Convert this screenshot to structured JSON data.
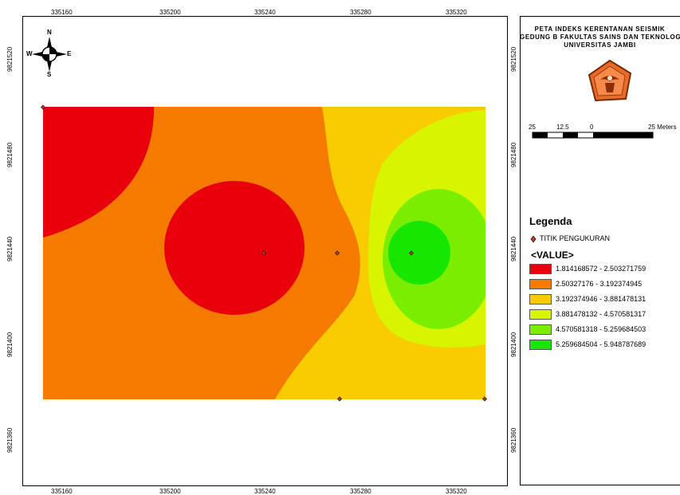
{
  "map": {
    "x_ticks": [
      "335160",
      "335200",
      "335240",
      "335280",
      "335320"
    ],
    "y_ticks": [
      "9821520",
      "9821480",
      "9821440",
      "9821400",
      "9821360"
    ],
    "compass": {
      "n": "N",
      "s": "S",
      "e": "E",
      "w": "W"
    },
    "colors": {
      "class1": "#e8000b",
      "class2": "#f57a00",
      "class3": "#f8cc00",
      "class4": "#d8f500",
      "class5": "#7aee00",
      "class6": "#17e600"
    }
  },
  "panel": {
    "title_line1": "PETA INDEKS KERENTANAN SEISMIK",
    "title_line2": "GEDUNG B FAKULTAS SAINS DAN TEKNOLOGI",
    "title_line3": "UNIVERSITAS JAMBI",
    "logo": "universitas-jambi-logo",
    "scale": {
      "left": "25",
      "mid": "12.5",
      "zero": "0",
      "right": "25 Meters"
    },
    "legend_title": "Legenda",
    "point_label": "TITIK PENGUKURAN",
    "value_title": "<VALUE>",
    "classes": [
      {
        "label": "1.814168572 - 2.503271759",
        "color": "#e8000b"
      },
      {
        "label": "2.50327176 - 3.192374945",
        "color": "#f57a00"
      },
      {
        "label": "3.192374946 - 3.881478131",
        "color": "#f8cc00"
      },
      {
        "label": "3.881478132 - 4.570581317",
        "color": "#d8f500"
      },
      {
        "label": "4.570581318 - 5.259684503",
        "color": "#7aee00"
      },
      {
        "label": "5.259684504 - 5.948787689",
        "color": "#17e600"
      }
    ]
  }
}
